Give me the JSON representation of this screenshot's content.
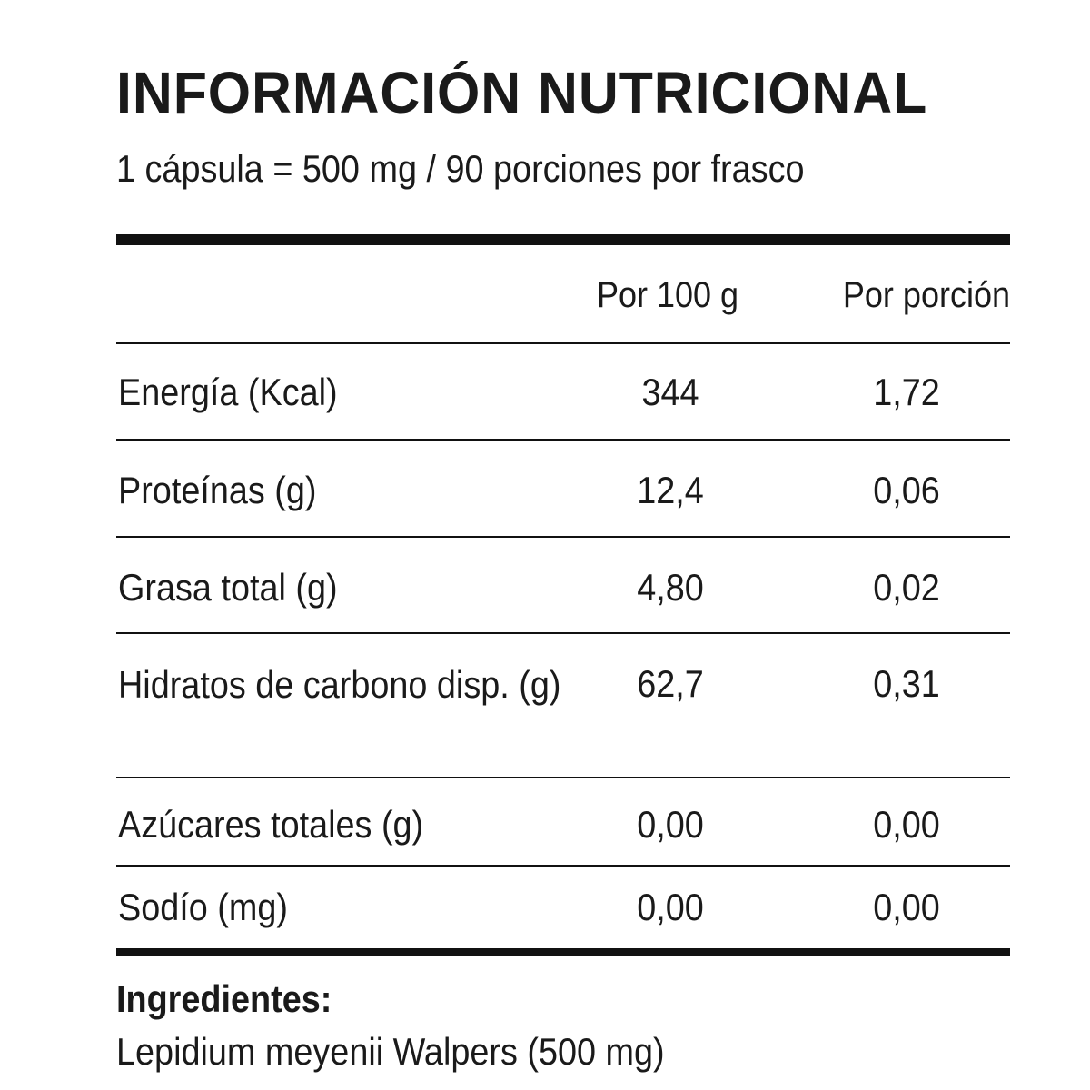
{
  "header": {
    "title": "INFORMACIÓN NUTRICIONAL",
    "serving": "1 cápsula = 500 mg / 90 porciones por frasco"
  },
  "table": {
    "columns": [
      "Por 100 g",
      "Por porción"
    ],
    "rows": [
      {
        "name": "Energía (Kcal)",
        "per100": "344",
        "perServing": "1,72"
      },
      {
        "name": "Proteínas (g)",
        "per100": "12,4",
        "perServing": "0,06"
      },
      {
        "name": "Grasa total (g)",
        "per100": "4,80",
        "perServing": "0,02"
      },
      {
        "name": "Hidratos de carbono disp. (g)",
        "per100": "62,7",
        "perServing": "0,31"
      },
      {
        "name": "Azúcares totales (g)",
        "per100": "0,00",
        "perServing": "0,00"
      },
      {
        "name": "Sodío (mg)",
        "per100": "0,00",
        "perServing": "0,00"
      }
    ]
  },
  "ingredients": {
    "label": "Ingredientes:",
    "text": "Lepidium meyenii Walpers (500 mg)"
  }
}
